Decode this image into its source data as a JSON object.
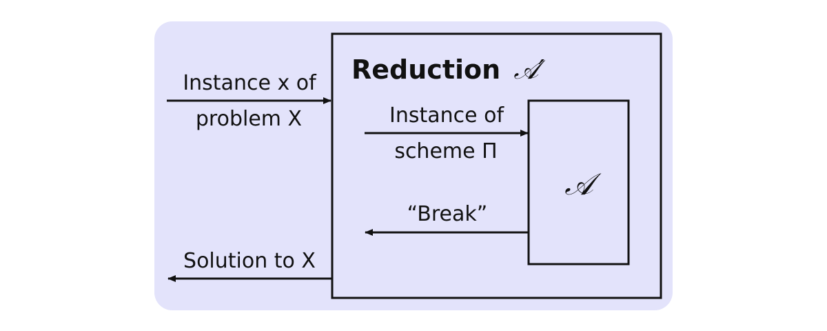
{
  "colors": {
    "background_panel": "#e3e3fb",
    "stroke": "#111111"
  },
  "outer": {
    "input_label_line1": "Instance x of",
    "input_label_line2": "problem X",
    "output_label": "Solution to X"
  },
  "reduction": {
    "title": "Reduction",
    "title_symbol": "𝒜′"
  },
  "inner": {
    "input_label_line1": "Instance of",
    "input_label_line2": "scheme Π",
    "output_label": "“Break”",
    "adversary_symbol": "𝒜"
  }
}
